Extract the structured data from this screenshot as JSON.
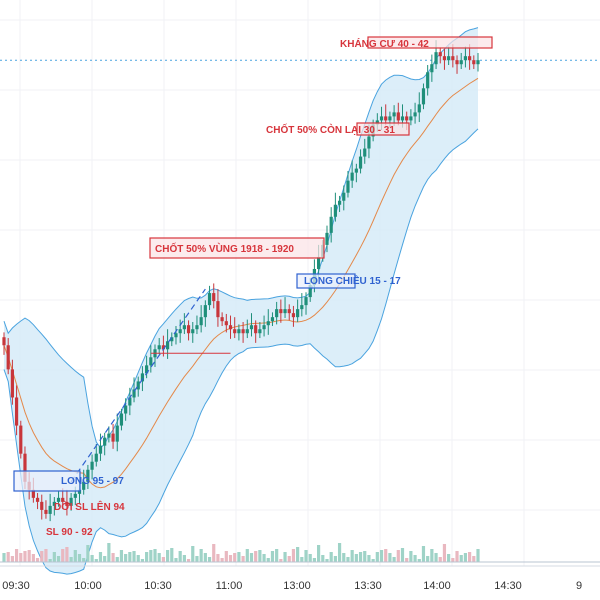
{
  "colors": {
    "up": "#1f8f7a",
    "down": "#c8363b",
    "band_fill": "#d6ebf8",
    "band_line": "#4aa3df",
    "mid_line": "#e4894a",
    "red_ann": "#d7353c",
    "blue_ann": "#2f62d0",
    "grid": "#f0f2f5",
    "volume": "#e9b8c0"
  },
  "chart_data": {
    "type": "candlestick",
    "x_ticks": [
      "09:30",
      "10:00",
      "10:30",
      "11:00",
      "13:00",
      "13:30",
      "14:00",
      "14:30",
      "9"
    ],
    "closes": [
      1906,
      1900,
      1893,
      1886,
      1879,
      1872,
      1870,
      1868,
      1867,
      1865,
      1864,
      1866,
      1867,
      1868,
      1867,
      1866,
      1868,
      1869,
      1870,
      1872,
      1875,
      1877,
      1879,
      1881,
      1883,
      1884,
      1882,
      1886,
      1889,
      1891,
      1893,
      1895,
      1897,
      1899,
      1901,
      1903,
      1905,
      1906,
      1905,
      1907,
      1908,
      1909,
      1910,
      1911,
      1909,
      1910,
      1911,
      1913,
      1916,
      1919,
      1917,
      1913,
      1912,
      1911,
      1910,
      1909,
      1910,
      1909,
      1910,
      1911,
      1909,
      1910,
      1911,
      1912,
      1913,
      1915,
      1914,
      1915,
      1914,
      1913,
      1915,
      1916,
      1918,
      1921,
      1925,
      1928,
      1931,
      1934,
      1938,
      1941,
      1942,
      1944,
      1947,
      1949,
      1950,
      1953,
      1955,
      1958,
      1961,
      1962,
      1963,
      1962,
      1963,
      1964,
      1962,
      1963,
      1962,
      1963,
      1964,
      1966,
      1970,
      1974,
      1976,
      1979,
      1978,
      1977,
      1978,
      1977,
      1976,
      1977,
      1978,
      1977,
      1976,
      1977
    ],
    "bollinger_period": 20,
    "annotations": [
      {
        "text": "KHÁNG CỰ 40 - 42",
        "color": "red"
      },
      {
        "text": "CHỐT 50% CÒN LẠI 30 - 31",
        "color": "red"
      },
      {
        "text": "CHỐT 50% VÙNG 1918 - 1920",
        "color": "red"
      },
      {
        "text": "LONG CHIỀU 15 - 17",
        "color": "blue"
      },
      {
        "text": "LONG 95 - 97",
        "color": "blue"
      },
      {
        "text": "DỜI SL LÊN 94",
        "color": "red"
      },
      {
        "text": "SL 90 - 92",
        "color": "red"
      }
    ],
    "grid": true
  }
}
